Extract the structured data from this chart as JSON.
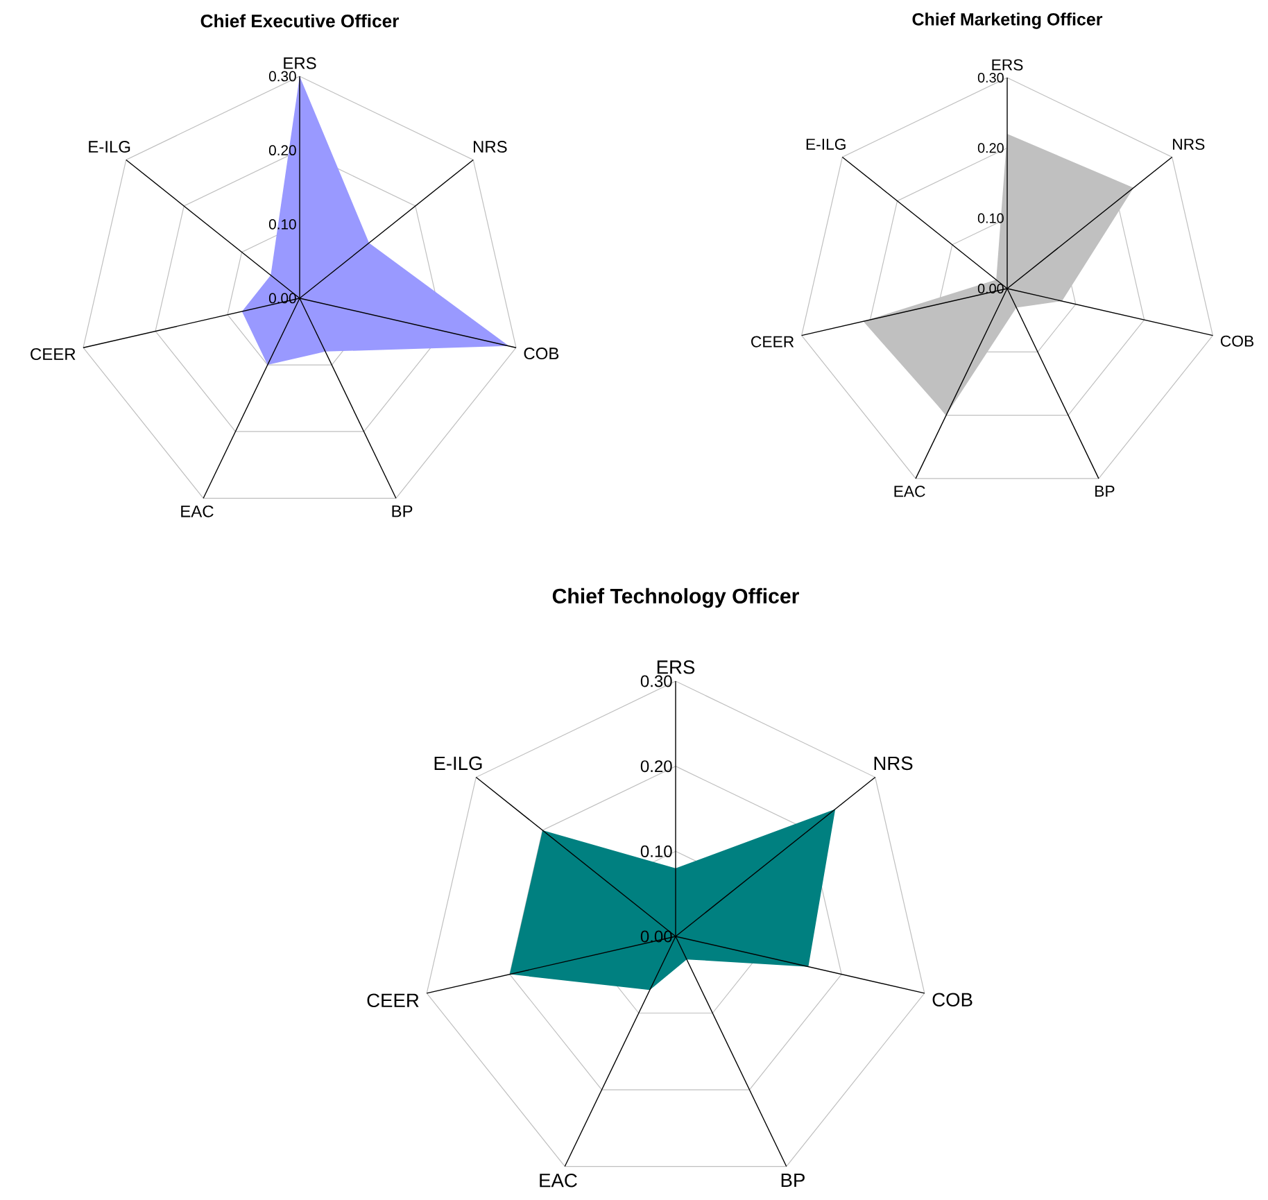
{
  "chart_data": [
    {
      "type": "radar",
      "title": "Chief Executive Officer",
      "categories": [
        "ERS",
        "NRS",
        "COB",
        "BP",
        "EAC",
        "CEER",
        "E-ILG"
      ],
      "ylim": [
        0,
        0.3
      ],
      "yticks": [
        {
          "value": 0,
          "label": "0.00"
        },
        {
          "value": 0.1,
          "label": "0.10"
        },
        {
          "value": 0.2,
          "label": "0.20"
        },
        {
          "value": 0.3,
          "label": "0.30"
        }
      ],
      "grid": true,
      "series": [
        {
          "color": "#9999ff",
          "values": [
            0.3,
            0.12,
            0.29,
            0.08,
            0.1,
            0.08,
            0.05
          ]
        }
      ]
    },
    {
      "type": "radar",
      "title": "Chief Marketing Officer",
      "categories": [
        "ERS",
        "NRS",
        "COB",
        "BP",
        "EAC",
        "CEER",
        "E-ILG"
      ],
      "ylim": [
        0,
        0.3
      ],
      "yticks": [
        {
          "value": 0,
          "label": "0.00"
        },
        {
          "value": 0.1,
          "label": "0.10"
        },
        {
          "value": 0.2,
          "label": "0.20"
        },
        {
          "value": 0.3,
          "label": "0.30"
        }
      ],
      "grid": true,
      "series": [
        {
          "color": "#c0c0c0",
          "values": [
            0.22,
            0.23,
            0.08,
            0.03,
            0.2,
            0.21,
            0.02
          ]
        }
      ]
    },
    {
      "type": "radar",
      "title": "Chief Technology Officer",
      "categories": [
        "ERS",
        "NRS",
        "COB",
        "BP",
        "EAC",
        "CEER",
        "E-ILG"
      ],
      "ylim": [
        0,
        0.3
      ],
      "yticks": [
        {
          "value": 0,
          "label": "0.00"
        },
        {
          "value": 0.1,
          "label": "0.10"
        },
        {
          "value": 0.2,
          "label": "0.20"
        },
        {
          "value": 0.3,
          "label": "0.30"
        }
      ],
      "grid": true,
      "series": [
        {
          "color": "#008080",
          "values": [
            0.08,
            0.24,
            0.16,
            0.03,
            0.07,
            0.2,
            0.2
          ]
        }
      ]
    }
  ]
}
